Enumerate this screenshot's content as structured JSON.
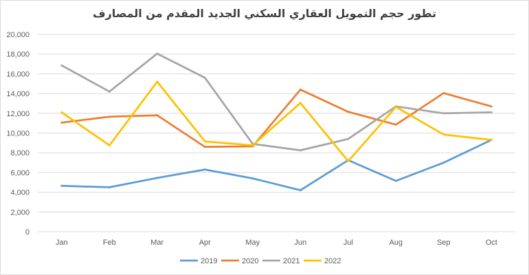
{
  "chart_data": {
    "type": "line",
    "title": "تطور حجم التمويل العقاري السكني الجديد المقدم من المصارف",
    "xlabel": "",
    "ylabel": "",
    "categories": [
      "Jan",
      "Feb",
      "Mar",
      "Apr",
      "May",
      "Jun",
      "Jul",
      "Aug",
      "Sep",
      "Oct"
    ],
    "ylim": [
      0,
      20000
    ],
    "yticks": [
      0,
      2000,
      4000,
      6000,
      8000,
      10000,
      12000,
      14000,
      16000,
      18000,
      20000
    ],
    "ytick_labels": [
      "0",
      "2,000",
      "4,000",
      "6,000",
      "8,000",
      "10,000",
      "12,000",
      "14,000",
      "16,000",
      "18,000",
      "20,000"
    ],
    "grid": true,
    "legend": "bottom",
    "series": [
      {
        "name": "2019",
        "color": "#5b9bd5",
        "values": [
          4650,
          4500,
          5450,
          6300,
          5400,
          4200,
          7250,
          5150,
          7000,
          9300
        ]
      },
      {
        "name": "2020",
        "color": "#ed7d31",
        "values": [
          11050,
          11650,
          11800,
          8600,
          8650,
          14400,
          12150,
          10850,
          14050,
          12700
        ]
      },
      {
        "name": "2021",
        "color": "#a5a5a5",
        "values": [
          16850,
          14200,
          18050,
          15600,
          8900,
          8250,
          9400,
          12700,
          12000,
          12100
        ]
      },
      {
        "name": "2022",
        "color": "#ffc000",
        "values": [
          12100,
          8750,
          15200,
          9150,
          8750,
          13050,
          7150,
          12650,
          9850,
          9300
        ]
      }
    ]
  }
}
